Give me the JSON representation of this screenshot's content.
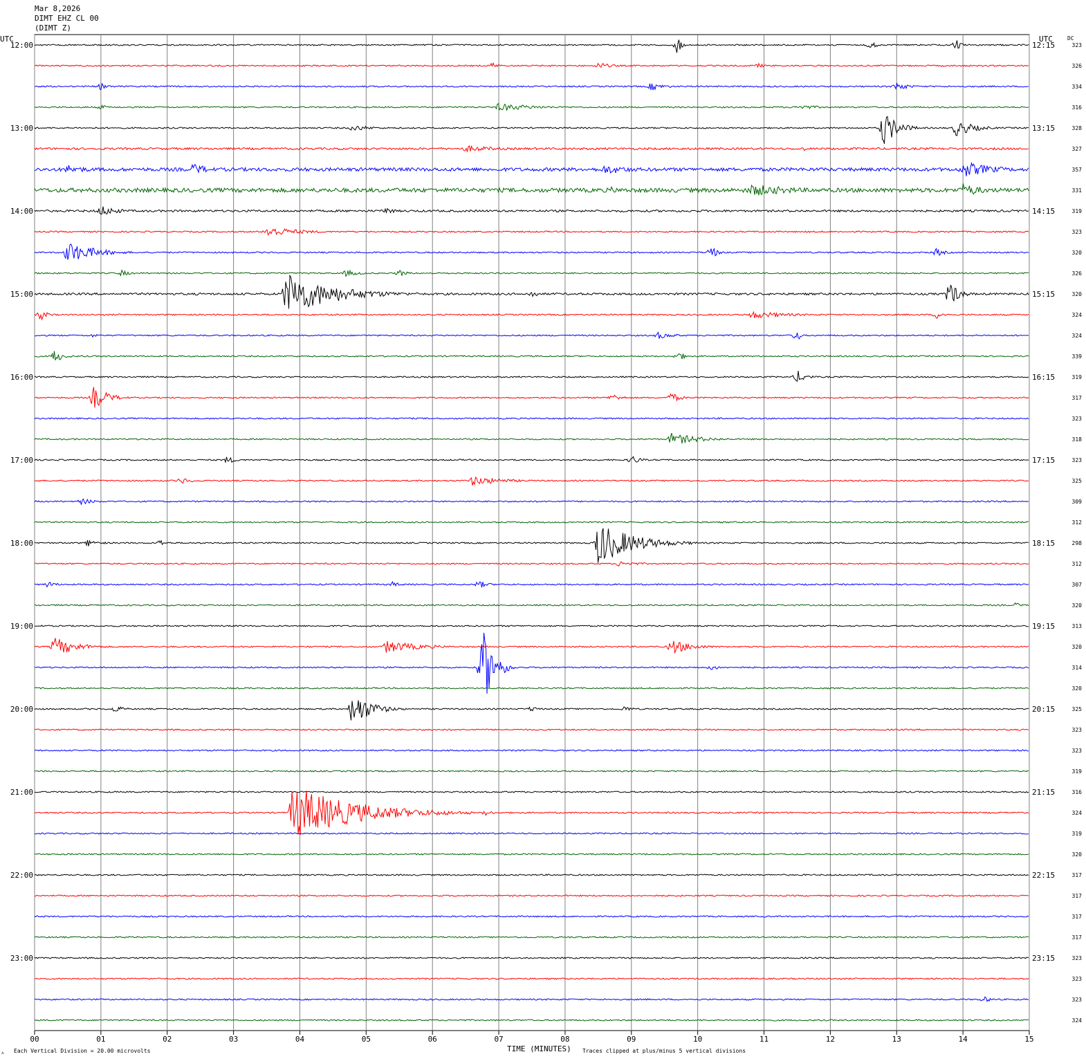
{
  "header": {
    "line1": "Mar 8,2026",
    "line2": "DIMT EHZ CL 00",
    "line3": "(DIMT Z)"
  },
  "labels": {
    "utc_left": "UTC",
    "utc_right": "UTC",
    "dc": "DC",
    "xlabel": "TIME (MINUTES)",
    "scale_note": "Each Vertical Division =   20.00 microvolts",
    "clip_note": "Traces clipped at plus/minus 5 vertical divisions"
  },
  "colors": {
    "trace_cycle": [
      "#000000",
      "#ff0000",
      "#0000ff",
      "#006400"
    ],
    "grid": "#808080",
    "background": "#ffffff"
  },
  "chart_data": {
    "type": "line",
    "description_type": "helicorder",
    "x_ticks": [
      "00",
      "01",
      "02",
      "03",
      "04",
      "05",
      "06",
      "07",
      "08",
      "09",
      "10",
      "11",
      "12",
      "13",
      "14",
      "15"
    ],
    "xlim_minutes": [
      0,
      15
    ],
    "row_minutes": 15,
    "left_time_labels": [
      "12:00",
      "13:00",
      "14:00",
      "15:00",
      "16:00",
      "17:00",
      "18:00",
      "19:00",
      "20:00",
      "21:00",
      "22:00",
      "23:00"
    ],
    "right_time_labels": [
      "12:15",
      "13:15",
      "14:15",
      "15:15",
      "16:15",
      "17:15",
      "18:15",
      "19:15",
      "20:15",
      "21:15",
      "22:15",
      "23:15"
    ],
    "dc_values": [
      323,
      326,
      334,
      316,
      328,
      327,
      357,
      331,
      319,
      323,
      320,
      326,
      320,
      324,
      324,
      339,
      319,
      317,
      323,
      318,
      323,
      325,
      309,
      312,
      298,
      312,
      307,
      320,
      313,
      320,
      314,
      320,
      325,
      323,
      323,
      319,
      316,
      324,
      319,
      320,
      317,
      317,
      317,
      317,
      323,
      323,
      323,
      324
    ],
    "noise_level": [
      1,
      1,
      1,
      1,
      1,
      1.5,
      2.5,
      3,
      1.5,
      1,
      1,
      1,
      1.5,
      1,
      1,
      1,
      1,
      1,
      1,
      1,
      1,
      1,
      1,
      1,
      1,
      1,
      1,
      1,
      1,
      1,
      1,
      1,
      1,
      1,
      1,
      1,
      1,
      1,
      1,
      1,
      1,
      1,
      1,
      1,
      1,
      1,
      1,
      1
    ],
    "events": [
      {
        "row": 0,
        "t": 9.7,
        "amp": 14,
        "dur": 0.15
      },
      {
        "row": 0,
        "t": 12.6,
        "amp": 6,
        "dur": 0.3
      },
      {
        "row": 0,
        "t": 13.9,
        "amp": 8,
        "dur": 0.2
      },
      {
        "row": 1,
        "t": 6.9,
        "amp": 5,
        "dur": 0.3
      },
      {
        "row": 1,
        "t": 8.5,
        "amp": 5,
        "dur": 0.6
      },
      {
        "row": 1,
        "t": 10.9,
        "amp": 4,
        "dur": 0.3
      },
      {
        "row": 2,
        "t": 1.0,
        "amp": 5,
        "dur": 0.4
      },
      {
        "row": 2,
        "t": 9.3,
        "amp": 6,
        "dur": 0.6
      },
      {
        "row": 2,
        "t": 13.0,
        "amp": 7,
        "dur": 0.5
      },
      {
        "row": 3,
        "t": 1.0,
        "amp": 4,
        "dur": 0.3
      },
      {
        "row": 3,
        "t": 7.0,
        "amp": 6,
        "dur": 1.6
      },
      {
        "row": 3,
        "t": 11.5,
        "amp": 4,
        "dur": 1.0
      },
      {
        "row": 4,
        "t": 4.8,
        "amp": 5,
        "dur": 0.8
      },
      {
        "row": 4,
        "t": 12.8,
        "amp": 26,
        "dur": 0.6
      },
      {
        "row": 4,
        "t": 13.9,
        "amp": 12,
        "dur": 0.8
      },
      {
        "row": 5,
        "t": 6.5,
        "amp": 5,
        "dur": 1.6
      },
      {
        "row": 5,
        "t": 11.6,
        "amp": 3,
        "dur": 0.3
      },
      {
        "row": 6,
        "t": 0.5,
        "amp": 7,
        "dur": 1.0
      },
      {
        "row": 6,
        "t": 2.4,
        "amp": 9,
        "dur": 0.7
      },
      {
        "row": 6,
        "t": 8.6,
        "amp": 7,
        "dur": 1.4
      },
      {
        "row": 6,
        "t": 14.0,
        "amp": 12,
        "dur": 1.4
      },
      {
        "row": 7,
        "t": 8.7,
        "amp": 5,
        "dur": 0.6
      },
      {
        "row": 7,
        "t": 10.8,
        "amp": 9,
        "dur": 2.2
      },
      {
        "row": 7,
        "t": 14.0,
        "amp": 10,
        "dur": 1.0
      },
      {
        "row": 8,
        "t": 1.0,
        "amp": 8,
        "dur": 0.8
      },
      {
        "row": 8,
        "t": 5.3,
        "amp": 7,
        "dur": 0.3
      },
      {
        "row": 9,
        "t": 3.5,
        "amp": 8,
        "dur": 1.4
      },
      {
        "row": 10,
        "t": 0.5,
        "amp": 16,
        "dur": 1.2
      },
      {
        "row": 10,
        "t": 10.2,
        "amp": 10,
        "dur": 0.3
      },
      {
        "row": 10,
        "t": 13.6,
        "amp": 6,
        "dur": 0.4
      },
      {
        "row": 11,
        "t": 1.3,
        "amp": 5,
        "dur": 0.4
      },
      {
        "row": 11,
        "t": 4.7,
        "amp": 5,
        "dur": 0.6
      },
      {
        "row": 11,
        "t": 5.5,
        "amp": 6,
        "dur": 0.3
      },
      {
        "row": 12,
        "t": 3.8,
        "amp": 32,
        "dur": 2.0
      },
      {
        "row": 12,
        "t": 7.5,
        "amp": 6,
        "dur": 0.3
      },
      {
        "row": 12,
        "t": 13.8,
        "amp": 20,
        "dur": 0.4
      },
      {
        "row": 13,
        "t": 0.1,
        "amp": 8,
        "dur": 0.3
      },
      {
        "row": 13,
        "t": 10.8,
        "amp": 6,
        "dur": 1.6
      },
      {
        "row": 13,
        "t": 13.6,
        "amp": 6,
        "dur": 0.4
      },
      {
        "row": 14,
        "t": 0.9,
        "amp": 4,
        "dur": 0.2
      },
      {
        "row": 14,
        "t": 9.4,
        "amp": 5,
        "dur": 0.8
      },
      {
        "row": 14,
        "t": 11.5,
        "amp": 14,
        "dur": 0.1
      },
      {
        "row": 15,
        "t": 0.3,
        "amp": 10,
        "dur": 0.4
      },
      {
        "row": 15,
        "t": 9.7,
        "amp": 8,
        "dur": 0.3
      },
      {
        "row": 16,
        "t": 11.5,
        "amp": 10,
        "dur": 0.4
      },
      {
        "row": 17,
        "t": 0.9,
        "amp": 18,
        "dur": 0.6
      },
      {
        "row": 17,
        "t": 8.7,
        "amp": 6,
        "dur": 0.5
      },
      {
        "row": 17,
        "t": 9.6,
        "amp": 8,
        "dur": 0.4
      },
      {
        "row": 19,
        "t": 9.6,
        "amp": 9,
        "dur": 1.3
      },
      {
        "row": 20,
        "t": 2.9,
        "amp": 5,
        "dur": 0.5
      },
      {
        "row": 20,
        "t": 9.0,
        "amp": 7,
        "dur": 0.4
      },
      {
        "row": 21,
        "t": 2.2,
        "amp": 5,
        "dur": 0.5
      },
      {
        "row": 21,
        "t": 6.6,
        "amp": 7,
        "dur": 1.4
      },
      {
        "row": 22,
        "t": 0.7,
        "amp": 5,
        "dur": 0.6
      },
      {
        "row": 24,
        "t": 0.8,
        "amp": 5,
        "dur": 0.6
      },
      {
        "row": 24,
        "t": 1.9,
        "amp": 6,
        "dur": 0.15
      },
      {
        "row": 24,
        "t": 8.5,
        "amp": 32,
        "dur": 1.5
      },
      {
        "row": 25,
        "t": 8.8,
        "amp": 4,
        "dur": 1.0
      },
      {
        "row": 26,
        "t": 0.2,
        "amp": 5,
        "dur": 0.4
      },
      {
        "row": 26,
        "t": 5.4,
        "amp": 4,
        "dur": 0.4
      },
      {
        "row": 26,
        "t": 6.7,
        "amp": 6,
        "dur": 0.4
      },
      {
        "row": 27,
        "t": 14.8,
        "amp": 4,
        "dur": 0.3
      },
      {
        "row": 29,
        "t": 0.3,
        "amp": 14,
        "dur": 1.0
      },
      {
        "row": 29,
        "t": 5.3,
        "amp": 9,
        "dur": 1.5
      },
      {
        "row": 29,
        "t": 9.6,
        "amp": 11,
        "dur": 0.9
      },
      {
        "row": 30,
        "t": 6.75,
        "amp": 60,
        "dur": 0.5
      },
      {
        "row": 30,
        "t": 10.2,
        "amp": 4,
        "dur": 0.5
      },
      {
        "row": 32,
        "t": 4.8,
        "amp": 26,
        "dur": 0.8
      },
      {
        "row": 32,
        "t": 1.2,
        "amp": 5,
        "dur": 0.5
      },
      {
        "row": 32,
        "t": 7.5,
        "amp": 5,
        "dur": 0.3
      },
      {
        "row": 32,
        "t": 8.9,
        "amp": 5,
        "dur": 0.3
      },
      {
        "row": 37,
        "t": 3.9,
        "amp": 40,
        "dur": 2.7
      },
      {
        "row": 37,
        "t": 6.8,
        "amp": 4,
        "dur": 0.4
      },
      {
        "row": 46,
        "t": 14.3,
        "amp": 5,
        "dur": 0.4
      }
    ]
  }
}
